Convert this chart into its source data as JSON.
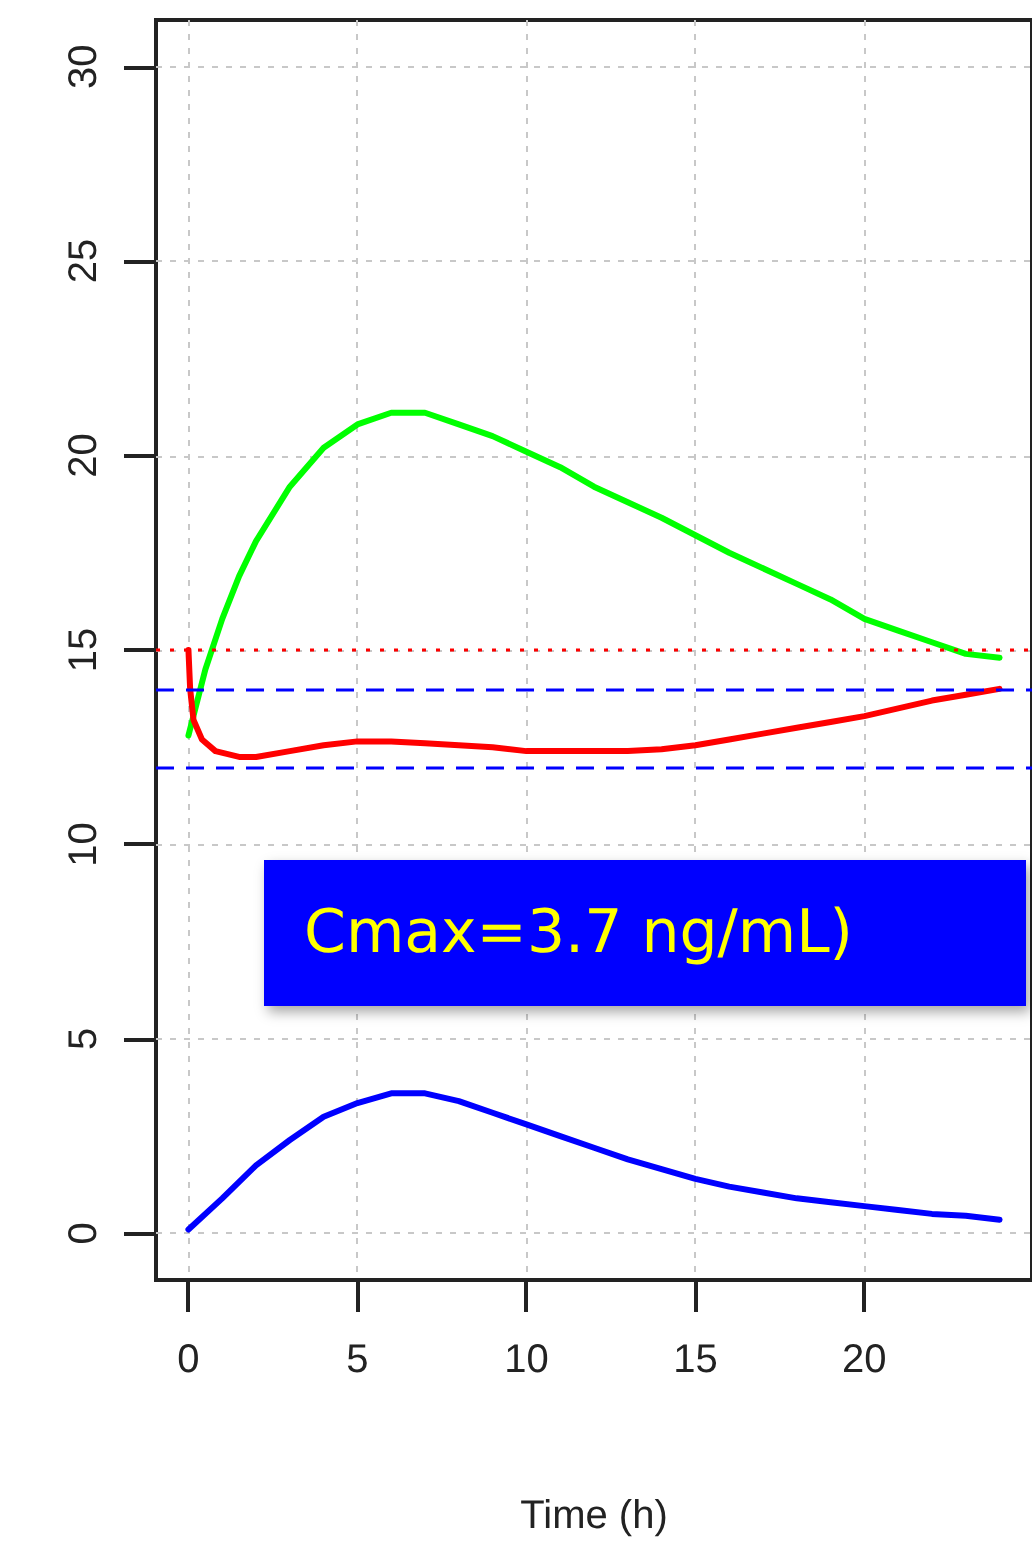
{
  "chart_data": {
    "type": "line",
    "xlabel": "Time (h)",
    "xlim": [
      -0.96,
      24.96
    ],
    "xticks": [
      0,
      5,
      10,
      15,
      20
    ],
    "ylim": [
      -1.2,
      31.2
    ],
    "yticks": [
      0,
      5,
      10,
      15,
      20,
      25,
      30
    ],
    "grid": true,
    "marker": "none",
    "line_style": "solid",
    "series": [
      {
        "color": "#00ff00",
        "x": [
          0,
          0.5,
          1,
          1.5,
          2,
          3,
          4,
          5,
          6,
          7,
          8,
          9,
          10,
          11,
          12,
          13,
          14,
          15,
          16,
          17,
          18,
          19,
          20,
          21,
          22,
          23,
          24
        ],
        "values": [
          12.8,
          14.5,
          15.8,
          16.9,
          17.8,
          19.2,
          20.2,
          20.8,
          21.1,
          21.1,
          20.8,
          20.5,
          20.1,
          19.7,
          19.2,
          18.8,
          18.4,
          17.95,
          17.5,
          17.1,
          16.7,
          16.3,
          15.8,
          15.5,
          15.2,
          14.9,
          14.8
        ]
      },
      {
        "color": "#ff0000",
        "x": [
          0,
          0.05,
          0.15,
          0.4,
          0.8,
          1.5,
          2,
          3,
          4,
          5,
          6,
          7,
          8,
          9,
          10,
          11,
          12,
          13,
          14,
          15,
          16,
          17,
          18,
          19,
          20,
          21,
          22,
          23,
          24
        ],
        "values": [
          15.0,
          14.0,
          13.2,
          12.7,
          12.4,
          12.25,
          12.25,
          12.4,
          12.55,
          12.65,
          12.65,
          12.6,
          12.55,
          12.5,
          12.4,
          12.4,
          12.4,
          12.4,
          12.45,
          12.55,
          12.7,
          12.85,
          13.0,
          13.15,
          13.3,
          13.5,
          13.7,
          13.85,
          14.0
        ]
      },
      {
        "color": "#0000ff",
        "x": [
          0,
          1,
          2,
          3,
          4,
          5,
          6,
          7,
          8,
          9,
          10,
          11,
          12,
          13,
          14,
          15,
          16,
          17,
          18,
          19,
          20,
          21,
          22,
          23,
          24
        ],
        "values": [
          0.1,
          0.9,
          1.75,
          2.4,
          3.0,
          3.35,
          3.6,
          3.6,
          3.4,
          3.1,
          2.8,
          2.5,
          2.2,
          1.9,
          1.65,
          1.4,
          1.2,
          1.05,
          0.9,
          0.8,
          0.7,
          0.6,
          0.5,
          0.45,
          0.35
        ]
      }
    ],
    "ref_lines": [
      {
        "axis": "y",
        "value": 15,
        "color": "#ff0000",
        "line_style": "dotted"
      },
      {
        "axis": "y",
        "value": 14,
        "color": "#0000ff",
        "line_style": "dashed"
      },
      {
        "axis": "y",
        "value": 12,
        "color": "#0000ff",
        "line_style": "dashed"
      }
    ],
    "annotations": [
      "Cmax=3.7 ng/mL)"
    ]
  }
}
